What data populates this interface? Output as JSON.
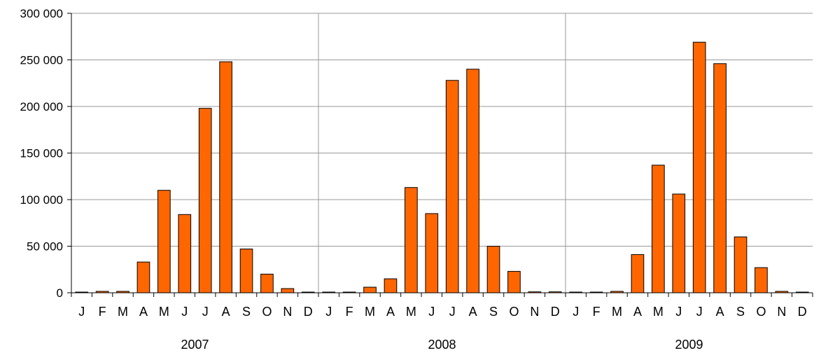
{
  "chart_data": {
    "type": "bar",
    "title": "",
    "xlabel": "",
    "ylabel": "",
    "ylim": [
      0,
      300000
    ],
    "y_ticks": [
      0,
      50000,
      100000,
      150000,
      200000,
      250000,
      300000
    ],
    "y_tick_labels": [
      "0",
      "50 000",
      "100 000",
      "150 000",
      "200 000",
      "250 000",
      "300 000"
    ],
    "grid": true,
    "legend": "none",
    "bar_color": "#ff6600",
    "bar_edge_color": "#000000",
    "categories": [
      "J",
      "F",
      "M",
      "A",
      "M",
      "J",
      "J",
      "A",
      "S",
      "O",
      "N",
      "D",
      "J",
      "F",
      "M",
      "A",
      "M",
      "J",
      "J",
      "A",
      "S",
      "O",
      "N",
      "D",
      "J",
      "F",
      "M",
      "A",
      "M",
      "J",
      "J",
      "A",
      "S",
      "O",
      "N",
      "D"
    ],
    "groups": [
      {
        "label": "2007",
        "start": 0,
        "count": 12
      },
      {
        "label": "2008",
        "start": 12,
        "count": 12
      },
      {
        "label": "2009",
        "start": 24,
        "count": 12
      }
    ],
    "values": [
      200,
      1500,
      1500,
      33000,
      110000,
      84000,
      198000,
      248000,
      47000,
      20000,
      4500,
      300,
      200,
      400,
      6000,
      15000,
      113000,
      85000,
      228000,
      240000,
      50000,
      23000,
      1000,
      1000,
      300,
      500,
      1500,
      41000,
      137000,
      106000,
      269000,
      246000,
      60000,
      27000,
      1500,
      300
    ]
  }
}
